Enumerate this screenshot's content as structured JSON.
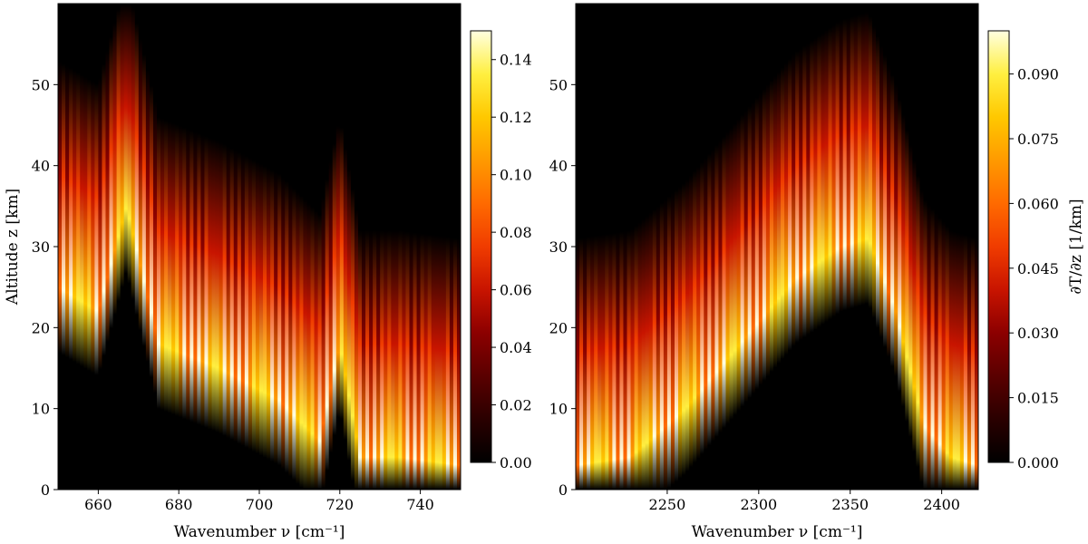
{
  "colormap": [
    "#000000",
    "#2a0000",
    "#5a0000",
    "#8c0000",
    "#c81400",
    "#f03c00",
    "#ff6a00",
    "#ff9a00",
    "#ffc800",
    "#ffef40",
    "#ffffe0"
  ],
  "chart_data": [
    {
      "type": "heatmap",
      "title": "",
      "xlabel": "Wavenumber ν [cm⁻¹]",
      "ylabel": "Altitude z [km]",
      "xlim": [
        650,
        750
      ],
      "ylim": [
        0,
        60
      ],
      "xticks": [
        660,
        680,
        700,
        720,
        740
      ],
      "yticks": [
        0,
        10,
        20,
        30,
        40,
        50
      ],
      "colorbar": {
        "label": "",
        "range": [
          0,
          0.15
        ],
        "ticks": [
          "0.00",
          "0.02",
          "0.04",
          "0.06",
          "0.08",
          "0.10",
          "0.12",
          "0.14"
        ],
        "tick_values": [
          0,
          0.02,
          0.04,
          0.06,
          0.08,
          0.1,
          0.12,
          0.14
        ]
      },
      "peak_altitude_km": [
        {
          "x": 650,
          "z": 25
        },
        {
          "x": 660,
          "z": 22
        },
        {
          "x": 667,
          "z": 35
        },
        {
          "x": 675,
          "z": 18
        },
        {
          "x": 690,
          "z": 15
        },
        {
          "x": 705,
          "z": 11
        },
        {
          "x": 715,
          "z": 6
        },
        {
          "x": 720,
          "z": 18
        },
        {
          "x": 725,
          "z": 4
        },
        {
          "x": 735,
          "z": 4
        },
        {
          "x": 750,
          "z": 3
        }
      ]
    },
    {
      "type": "heatmap",
      "title": "",
      "xlabel": "Wavenumber ν [cm⁻¹]",
      "ylabel": "",
      "xlim": [
        2200,
        2420
      ],
      "ylim": [
        0,
        60
      ],
      "xticks": [
        2250,
        2300,
        2350,
        2400
      ],
      "yticks": [
        0,
        10,
        20,
        30,
        40,
        50
      ],
      "colorbar": {
        "label": "∂T/∂z [1/km]",
        "range": [
          0,
          0.1
        ],
        "ticks": [
          "0.000",
          "0.015",
          "0.030",
          "0.045",
          "0.060",
          "0.075",
          "0.090"
        ],
        "tick_values": [
          0,
          0.015,
          0.03,
          0.045,
          0.06,
          0.075,
          0.09
        ]
      },
      "peak_altitude_km": [
        {
          "x": 2200,
          "z": 3
        },
        {
          "x": 2230,
          "z": 4
        },
        {
          "x": 2260,
          "z": 10
        },
        {
          "x": 2290,
          "z": 18
        },
        {
          "x": 2320,
          "z": 26
        },
        {
          "x": 2345,
          "z": 30
        },
        {
          "x": 2360,
          "z": 31
        },
        {
          "x": 2375,
          "z": 22
        },
        {
          "x": 2390,
          "z": 8
        },
        {
          "x": 2405,
          "z": 4
        },
        {
          "x": 2420,
          "z": 3
        }
      ]
    }
  ]
}
